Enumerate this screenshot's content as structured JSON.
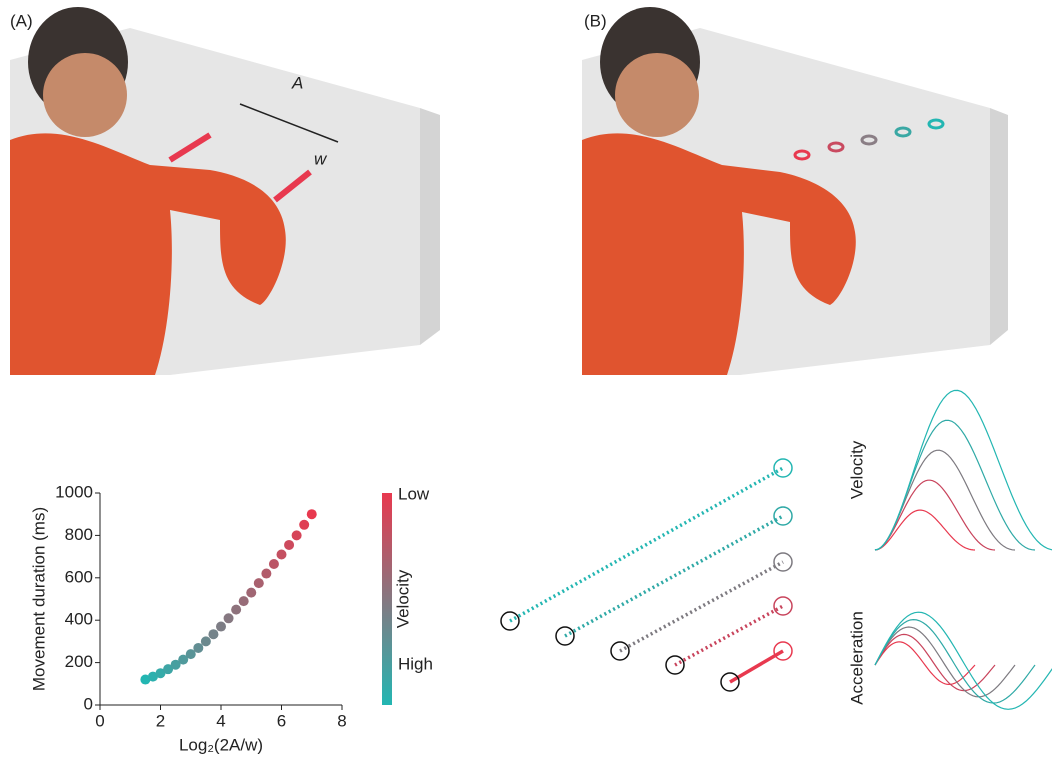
{
  "panel_a": {
    "label": "(A)",
    "distance_label": "A",
    "width_label": "w"
  },
  "panel_b": {
    "label": "(B)"
  },
  "profiles": {
    "velocity_label": "Velocity",
    "acceleration_label": "Acceleration"
  },
  "chart_data": {
    "type": "scatter",
    "x_label": "Log₂(2A/w)",
    "y_label": "Movement duration (ms)",
    "x": [
      1.5,
      1.75,
      2,
      2.25,
      2.5,
      2.75,
      3,
      3.25,
      3.5,
      3.75,
      4,
      4.25,
      4.5,
      4.75,
      5,
      5.25,
      5.5,
      5.75,
      6,
      6.25,
      6.5,
      6.75,
      7
    ],
    "values": [
      120,
      134,
      150,
      169,
      190,
      214,
      240,
      269,
      300,
      334,
      370,
      409,
      450,
      490,
      530,
      575,
      620,
      665,
      710,
      755,
      800,
      850,
      900
    ],
    "xlim": [
      0,
      8
    ],
    "xticks": [
      0,
      2,
      4,
      6,
      8
    ],
    "ylim": [
      0,
      1000
    ],
    "yticks": [
      0,
      200,
      400,
      600,
      800,
      1000
    ],
    "colorbar": {
      "label": "Velocity",
      "low": "Low",
      "high": "High",
      "colors": [
        "#23b6b2",
        "#e8394f"
      ]
    }
  }
}
